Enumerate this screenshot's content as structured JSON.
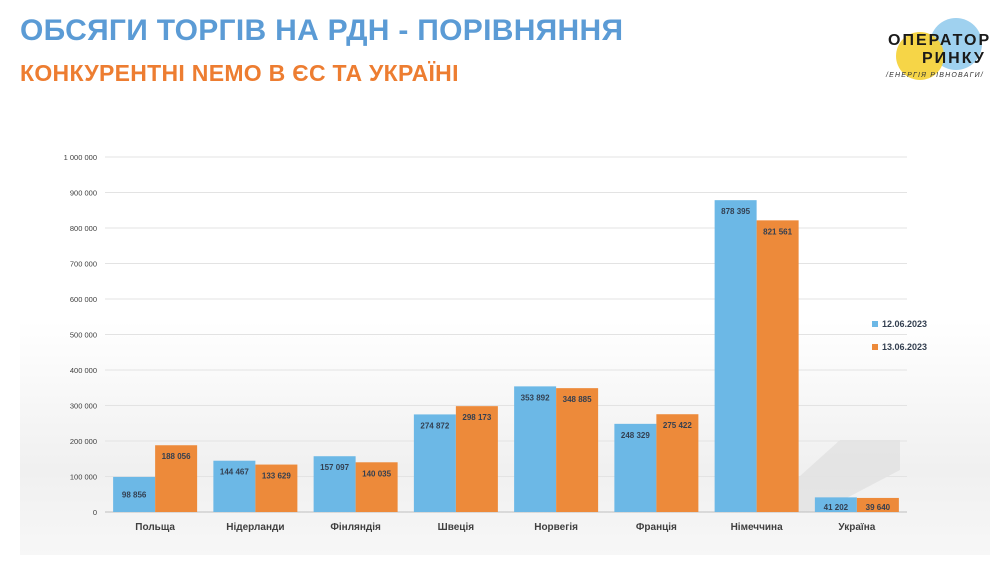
{
  "header": {
    "title": "ОБСЯГИ ТОРГІВ НА РДН - ПОРІВНЯННЯ",
    "subtitle": "КОНКУРЕНТНІ NEMO В ЄС ТА УКРАЇНІ"
  },
  "logo": {
    "line1": "ОПЕРАТОР",
    "line2": "РИНКУ",
    "tagline": "/ЕНЕРГІЯ РІВНОВАГИ/"
  },
  "colors": {
    "title": "#5b9bd5",
    "subtitle": "#ed7d31",
    "series1": "#6cb8e6",
    "series2": "#ed8a3a",
    "logo_yellow": "#f5d033",
    "logo_blue": "#8ec9ec"
  },
  "chart_data": {
    "type": "bar",
    "categories": [
      "Польща",
      "Нідерланди",
      "Фінляндія",
      "Швеція",
      "Норвегія",
      "Франція",
      "Німеччина",
      "Україна"
    ],
    "series": [
      {
        "name": "12.06.2023",
        "values": [
          98856,
          144467,
          157097,
          274872,
          353892,
          248329,
          878395,
          41202
        ],
        "labels": [
          "98 856",
          "144 467",
          "157 097",
          "274 872",
          "353 892",
          "248 329",
          "878 395",
          "41 202"
        ]
      },
      {
        "name": "13.06.2023",
        "values": [
          188056,
          133629,
          140035,
          298173,
          348885,
          275422,
          821561,
          39640
        ],
        "labels": [
          "188 056",
          "133 629",
          "140 035",
          "298 173",
          "348 885",
          "275 422",
          "821 561",
          "39 640"
        ]
      }
    ],
    "yticks": [
      0,
      100000,
      200000,
      300000,
      400000,
      500000,
      600000,
      700000,
      800000,
      900000,
      1000000
    ],
    "ytick_labels": [
      "0",
      "100 000",
      "200 000",
      "300 000",
      "400 000",
      "500 000",
      "600 000",
      "700 000",
      "800 000",
      "900 000",
      "1 000 000"
    ],
    "ylim": [
      0,
      1000000
    ],
    "grid": true,
    "legend_position": "right",
    "title": "",
    "xlabel": "",
    "ylabel": ""
  }
}
